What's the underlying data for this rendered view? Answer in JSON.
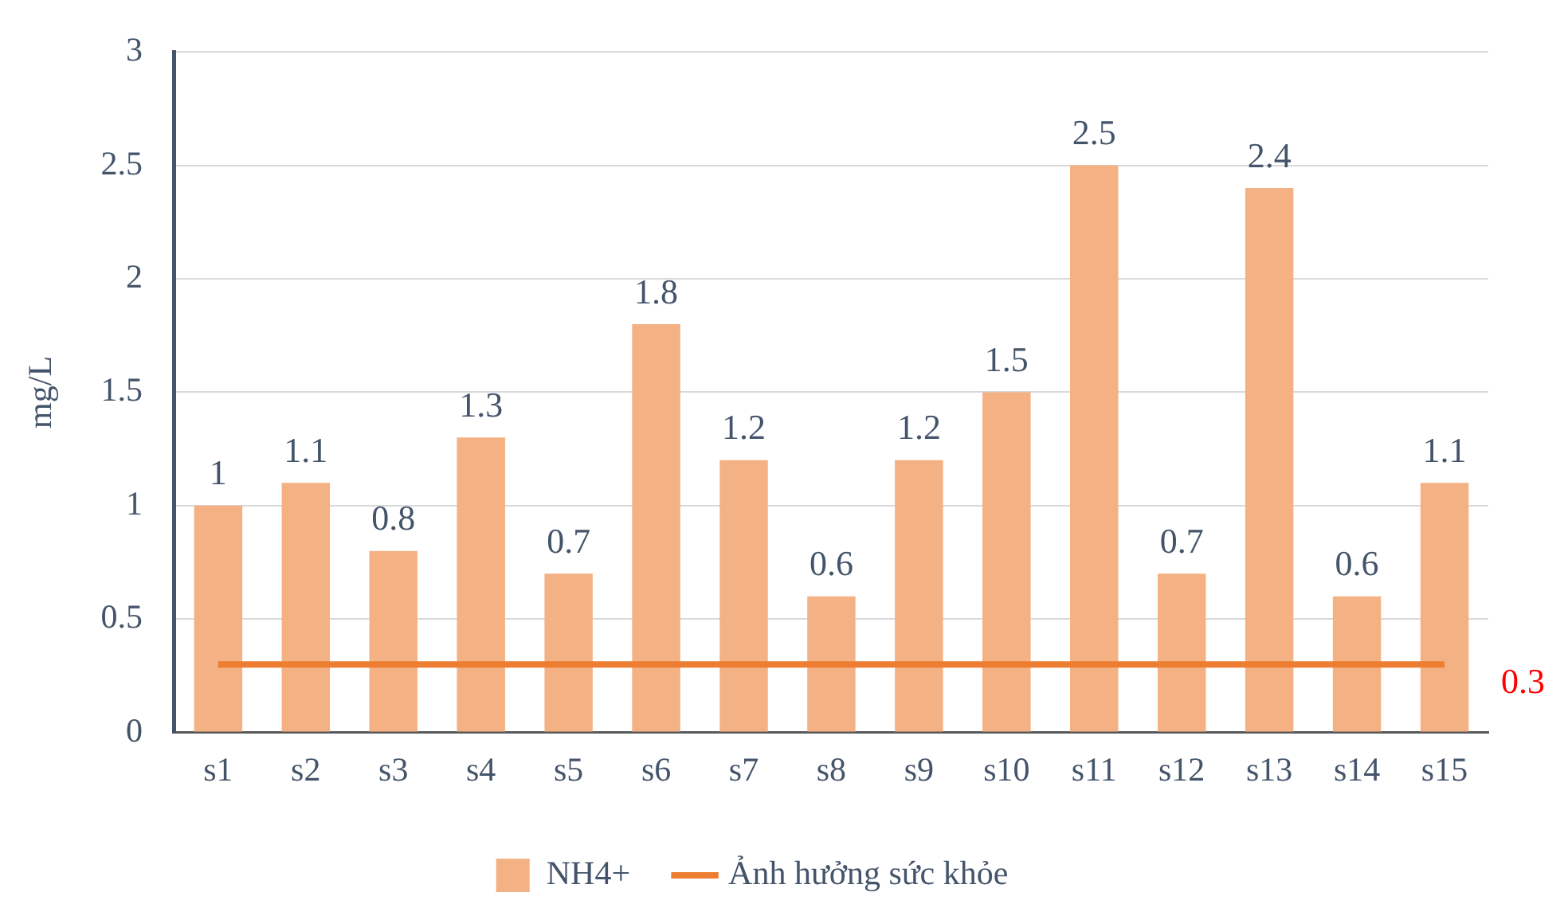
{
  "chart_data": {
    "type": "bar",
    "ylabel": "mg/L",
    "categories": [
      "s1",
      "s2",
      "s3",
      "s4",
      "s5",
      "s6",
      "s7",
      "s8",
      "s9",
      "s10",
      "s11",
      "s12",
      "s13",
      "s14",
      "s15"
    ],
    "series": [
      {
        "name": "NH4+",
        "color": "#f4b183",
        "values": [
          1,
          1.1,
          0.8,
          1.3,
          0.7,
          1.8,
          1.2,
          0.6,
          1.2,
          1.5,
          2.5,
          0.7,
          2.4,
          0.6,
          1.1
        ],
        "value_labels": [
          "1",
          "1.1",
          "0.8",
          "1.3",
          "0.7",
          "1.8",
          "1.2",
          "0.6",
          "1.2",
          "1.5",
          "2.5",
          "0.7",
          "2.4",
          "0.6",
          "1.1"
        ]
      },
      {
        "name": "Ảnh hưởng sức khỏe",
        "type": "line",
        "color": "#ed7d31",
        "values": [
          0.3,
          0.3,
          0.3,
          0.3,
          0.3,
          0.3,
          0.3,
          0.3,
          0.3,
          0.3,
          0.3,
          0.3,
          0.3,
          0.3,
          0.3
        ],
        "value_labels": [
          null,
          null,
          null,
          null,
          null,
          null,
          null,
          null,
          null,
          null,
          null,
          null,
          null,
          null,
          "0.3"
        ]
      }
    ],
    "ylim": [
      0,
      3
    ],
    "yticks": [
      0,
      0.5,
      1,
      1.5,
      2,
      2.5,
      3
    ],
    "grid": "y",
    "legend": "bottom",
    "marker": "none"
  }
}
